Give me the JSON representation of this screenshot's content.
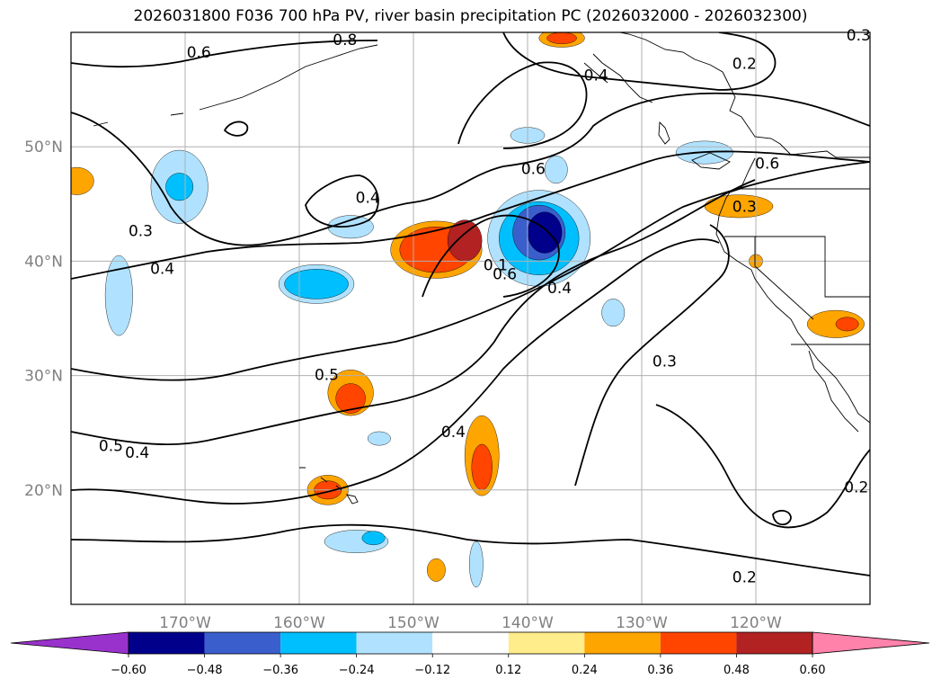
{
  "title": "2026031800 F036 700 hPa PV, river basin precipitation PC (2026032000 - 2026032300)",
  "chart_data": {
    "type": "heatmap",
    "title": "2026031800 F036 700 hPa PV, river basin precipitation PC (2026032000 - 2026032300)",
    "projection": "equirectangular",
    "xlim": [
      -180,
      -110
    ],
    "ylim": [
      10,
      60
    ],
    "grid": true,
    "lon_ticks": [
      {
        "value": -170,
        "label": "170°W"
      },
      {
        "value": -160,
        "label": "160°W"
      },
      {
        "value": -150,
        "label": "150°W"
      },
      {
        "value": -140,
        "label": "140°W"
      },
      {
        "value": -130,
        "label": "130°W"
      },
      {
        "value": -120,
        "label": "120°W"
      }
    ],
    "lat_ticks": [
      {
        "value": 20,
        "label": "20°N"
      },
      {
        "value": 30,
        "label": "30°N"
      },
      {
        "value": 40,
        "label": "40°N"
      },
      {
        "value": 50,
        "label": "50°N"
      }
    ],
    "colorbar": {
      "orientation": "horizontal",
      "extend": "both",
      "colors": [
        "#9932cc",
        "#00008b",
        "#3a5fcd",
        "#00bfff",
        "#b0e2ff",
        "#ffffff",
        "#ffec8b",
        "#ffa500",
        "#ff4500",
        "#b22222",
        "#ff82ab"
      ],
      "ticks": [
        "−0.60",
        "−0.48",
        "−0.36",
        "−0.24",
        "−0.12",
        "0.12",
        "0.24",
        "0.36",
        "0.48",
        "0.60"
      ]
    },
    "filled_regions": [
      {
        "lon": -170.5,
        "lat": 46.5,
        "rx": 2.5,
        "ry": 3.2,
        "level": -0.24
      },
      {
        "lon": -170.5,
        "lat": 46.5,
        "rx": 1.2,
        "ry": 1.2,
        "level": -0.36
      },
      {
        "lon": -158.5,
        "lat": 38.0,
        "rx": 3.3,
        "ry": 1.7,
        "level": -0.24
      },
      {
        "lon": -158.5,
        "lat": 38.0,
        "rx": 2.8,
        "ry": 1.3,
        "level": -0.36
      },
      {
        "lon": -175.8,
        "lat": 37.0,
        "rx": 1.2,
        "ry": 3.5,
        "level": -0.24
      },
      {
        "lon": -155.5,
        "lat": 43.0,
        "rx": 2.0,
        "ry": 1.0,
        "level": -0.24
      },
      {
        "lon": -139.0,
        "lat": 42.0,
        "rx": 4.5,
        "ry": 4.2,
        "level": -0.24
      },
      {
        "lon": -139.0,
        "lat": 42.0,
        "rx": 3.5,
        "ry": 3.2,
        "level": -0.36
      },
      {
        "lon": -139.0,
        "lat": 42.5,
        "rx": 2.3,
        "ry": 2.4,
        "level": -0.48
      },
      {
        "lon": -138.5,
        "lat": 42.5,
        "rx": 1.5,
        "ry": 1.8,
        "level": -0.6
      },
      {
        "lon": -140.0,
        "lat": 51.0,
        "rx": 1.5,
        "ry": 0.7,
        "level": -0.24
      },
      {
        "lon": -137.5,
        "lat": 48.0,
        "rx": 1.0,
        "ry": 1.2,
        "level": -0.24
      },
      {
        "lon": -124.5,
        "lat": 49.5,
        "rx": 2.5,
        "ry": 1.0,
        "level": -0.24
      },
      {
        "lon": -132.5,
        "lat": 35.5,
        "rx": 1.0,
        "ry": 1.2,
        "level": -0.24
      },
      {
        "lon": -155.0,
        "lat": 15.5,
        "rx": 2.8,
        "ry": 1.0,
        "level": -0.24
      },
      {
        "lon": -153.5,
        "lat": 15.8,
        "rx": 1.0,
        "ry": 0.6,
        "level": -0.36
      },
      {
        "lon": -144.5,
        "lat": 13.5,
        "rx": 0.6,
        "ry": 2.0,
        "level": -0.24
      },
      {
        "lon": -153.0,
        "lat": 24.5,
        "rx": 1.0,
        "ry": 0.6,
        "level": -0.24
      },
      {
        "lon": -148.0,
        "lat": 41.0,
        "rx": 4.0,
        "ry": 2.5,
        "level": 0.24
      },
      {
        "lon": -148.0,
        "lat": 41.0,
        "rx": 3.2,
        "ry": 2.0,
        "level": 0.36
      },
      {
        "lon": -145.5,
        "lat": 41.8,
        "rx": 1.5,
        "ry": 1.8,
        "level": 0.48
      },
      {
        "lon": -155.5,
        "lat": 28.5,
        "rx": 2.0,
        "ry": 2.0,
        "level": 0.24
      },
      {
        "lon": -155.5,
        "lat": 28.0,
        "rx": 1.3,
        "ry": 1.3,
        "level": 0.36
      },
      {
        "lon": -144.0,
        "lat": 23.0,
        "rx": 1.5,
        "ry": 3.5,
        "level": 0.24
      },
      {
        "lon": -144.0,
        "lat": 22.0,
        "rx": 0.9,
        "ry": 2.0,
        "level": 0.36
      },
      {
        "lon": -157.5,
        "lat": 20.0,
        "rx": 1.8,
        "ry": 1.3,
        "level": 0.24
      },
      {
        "lon": -157.5,
        "lat": 20.0,
        "rx": 1.2,
        "ry": 0.8,
        "level": 0.36
      },
      {
        "lon": -121.5,
        "lat": 44.8,
        "rx": 3.0,
        "ry": 1.0,
        "level": 0.24
      },
      {
        "lon": -113.0,
        "lat": 34.5,
        "rx": 2.5,
        "ry": 1.2,
        "level": 0.24
      },
      {
        "lon": -112.0,
        "lat": 34.5,
        "rx": 1.0,
        "ry": 0.6,
        "level": 0.36
      },
      {
        "lon": -179.5,
        "lat": 47.0,
        "rx": 1.5,
        "ry": 1.2,
        "level": 0.24
      },
      {
        "lon": -137.0,
        "lat": 59.5,
        "rx": 2.0,
        "ry": 0.8,
        "level": 0.24
      },
      {
        "lon": -137.0,
        "lat": 59.5,
        "rx": 1.3,
        "ry": 0.5,
        "level": 0.36
      },
      {
        "lon": -148.0,
        "lat": 13.0,
        "rx": 0.8,
        "ry": 1.0,
        "level": 0.24
      },
      {
        "lon": -120.0,
        "lat": 40.0,
        "rx": 0.6,
        "ry": 0.6,
        "level": 0.24
      }
    ],
    "pv_contour_labels": [
      {
        "text": "0.8",
        "lon": -156.0,
        "lat": 59.3
      },
      {
        "text": "0.6",
        "lon": -168.8,
        "lat": 58.2
      },
      {
        "text": "0.3",
        "lon": -111.0,
        "lat": 59.7
      },
      {
        "text": "0.2",
        "lon": -121.0,
        "lat": 57.2
      },
      {
        "text": "0.4",
        "lon": -134.0,
        "lat": 56.2
      },
      {
        "text": "0.4",
        "lon": -154.0,
        "lat": 45.5
      },
      {
        "text": "0.6",
        "lon": -139.5,
        "lat": 48.0
      },
      {
        "text": "0.6",
        "lon": -119.0,
        "lat": 48.5
      },
      {
        "text": "0.3",
        "lon": -121.0,
        "lat": 44.7
      },
      {
        "text": "0.3",
        "lon": -173.9,
        "lat": 42.6
      },
      {
        "text": "0.4",
        "lon": -172.0,
        "lat": 39.3
      },
      {
        "text": "0.1",
        "lon": -142.8,
        "lat": 39.6
      },
      {
        "text": "0.6",
        "lon": -142.0,
        "lat": 38.8
      },
      {
        "text": "0.4",
        "lon": -137.2,
        "lat": 37.6
      },
      {
        "text": "0.5",
        "lon": -157.6,
        "lat": 30.0
      },
      {
        "text": "0.3",
        "lon": -128.0,
        "lat": 31.2
      },
      {
        "text": "0.4",
        "lon": -146.5,
        "lat": 25.0
      },
      {
        "text": "0.5",
        "lon": -176.5,
        "lat": 23.8
      },
      {
        "text": "0.4",
        "lon": -174.2,
        "lat": 23.2
      },
      {
        "text": "0.2",
        "lon": -111.2,
        "lat": 20.2
      },
      {
        "text": "0.2",
        "lon": -121.0,
        "lat": 12.3
      }
    ]
  }
}
